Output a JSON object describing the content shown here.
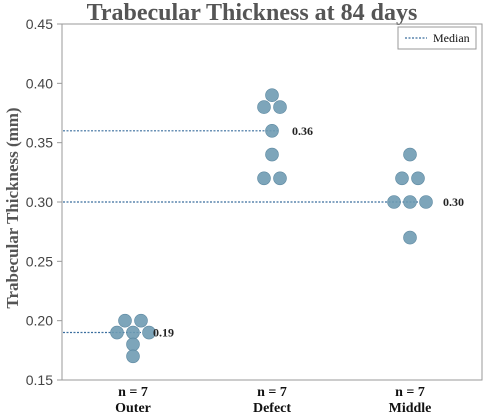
{
  "chart_data": {
    "type": "scatter",
    "title": "Trabecular Thickness at 84 days",
    "ylabel": "Trabecular Thickness (mm)",
    "xlabel": "",
    "ylim": [
      0.15,
      0.45
    ],
    "yticks": [
      "0.15",
      "0.20",
      "0.25",
      "0.30",
      "0.35",
      "0.40",
      "0.45"
    ],
    "grid": false,
    "legend": {
      "position": "top-right",
      "entries": [
        "Median"
      ]
    },
    "categories": [
      "Outer",
      "Defect",
      "Middle"
    ],
    "n_labels": [
      "n = 7",
      "n = 7",
      "n = 7"
    ],
    "medians": [
      0.19,
      0.36,
      0.3
    ],
    "median_labels": [
      "0.19",
      "0.36",
      "0.30"
    ],
    "groups": [
      {
        "category": "Outer",
        "values": [
          0.2,
          0.2,
          0.19,
          0.19,
          0.19,
          0.18,
          0.17
        ]
      },
      {
        "category": "Defect",
        "values": [
          0.39,
          0.38,
          0.38,
          0.36,
          0.34,
          0.32,
          0.32
        ]
      },
      {
        "category": "Middle",
        "values": [
          0.34,
          0.32,
          0.32,
          0.3,
          0.3,
          0.3,
          0.27
        ]
      }
    ],
    "colors": {
      "points": "#6f9bb3",
      "median_line": "#3a6e9e",
      "axis": "#888888"
    }
  }
}
